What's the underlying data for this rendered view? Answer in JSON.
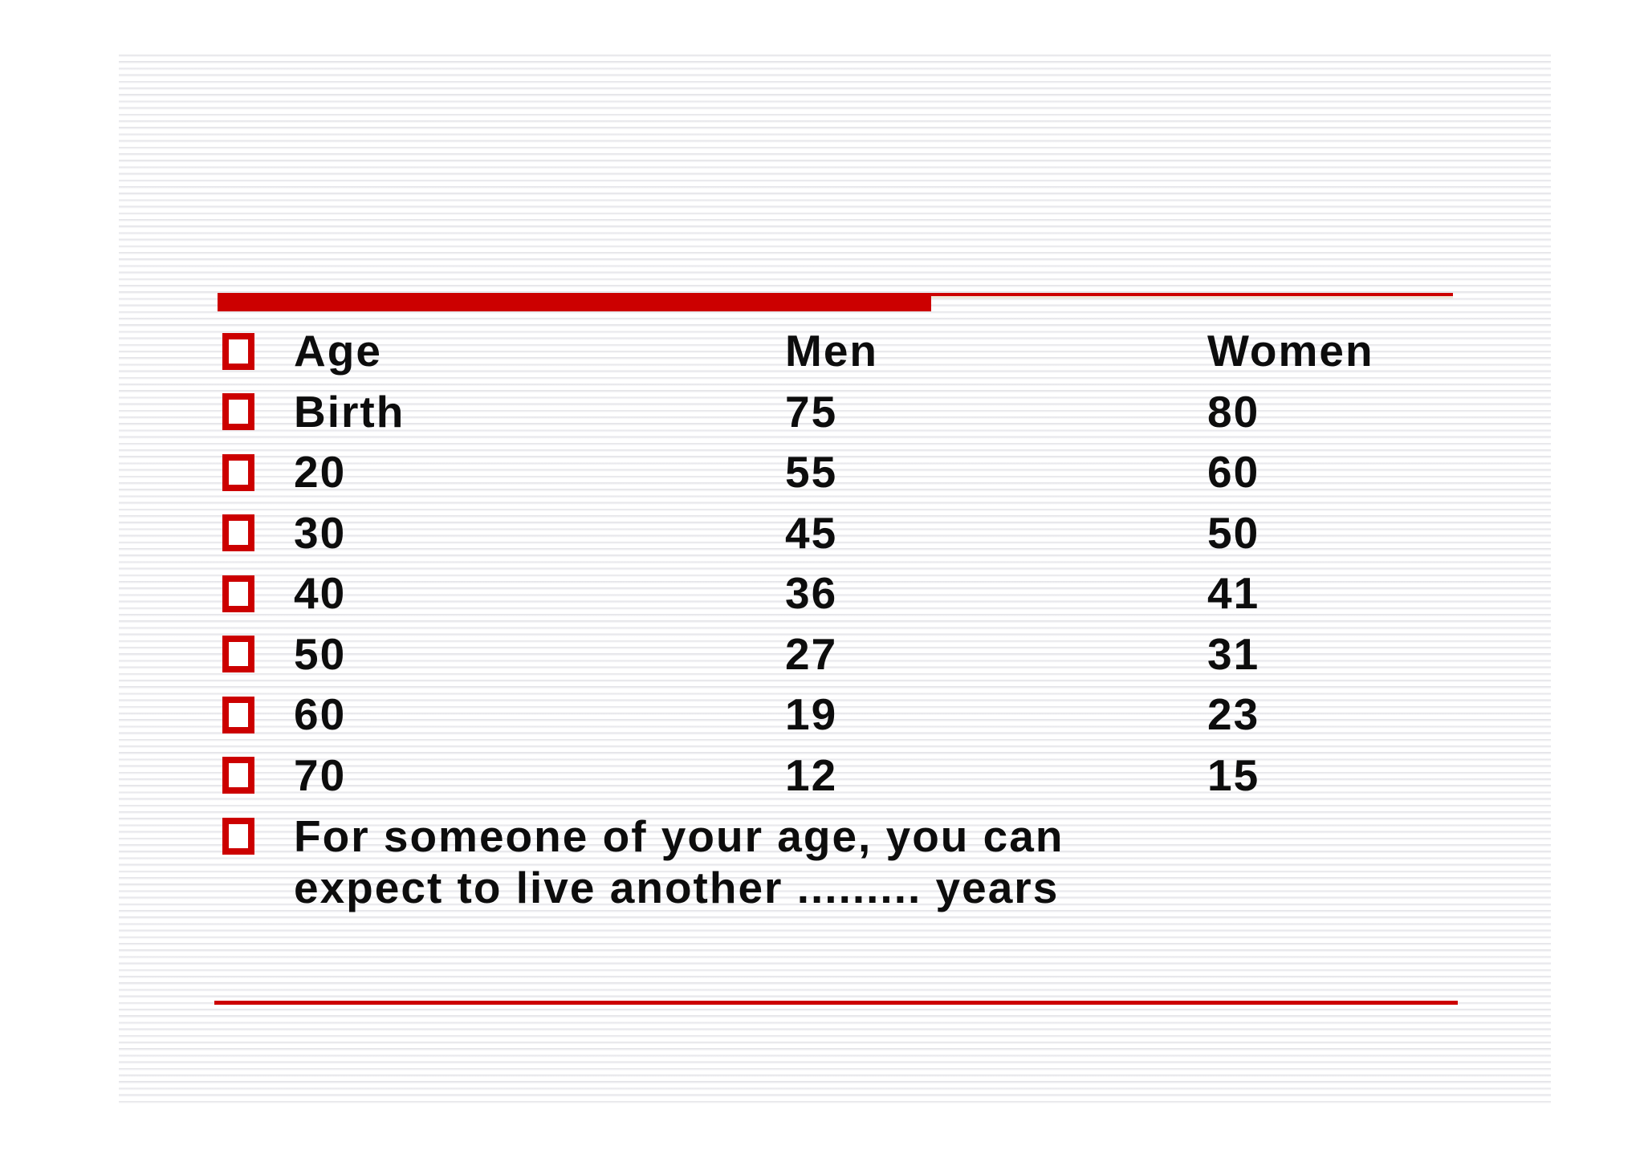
{
  "slide": {
    "accent_color": "#cc0000",
    "stripe_color": "#e2e2e6",
    "background_color": "#ffffff",
    "text_color": "#0d0d0d"
  },
  "table": {
    "header": {
      "age": "Age",
      "men": "Men",
      "women": "Women"
    },
    "rows": [
      {
        "age": "Birth",
        "men": "75",
        "women": "80"
      },
      {
        "age": "20",
        "men": "55",
        "women": "60"
      },
      {
        "age": "30",
        "men": "45",
        "women": "50"
      },
      {
        "age": "40",
        "men": "36",
        "women": "41"
      },
      {
        "age": "50",
        "men": "27",
        "women": "31"
      },
      {
        "age": "60",
        "men": "19",
        "women": "23"
      },
      {
        "age": "70",
        "men": "12",
        "women": "15"
      }
    ]
  },
  "note": {
    "text": "For someone of your age, you can expect to live another ......... years",
    "lines": [
      "For someone of your age, you can",
      "expect to live another ......... years"
    ]
  },
  "chart_data": {
    "type": "table",
    "title": "",
    "categories": [
      "Birth",
      "20",
      "30",
      "40",
      "50",
      "60",
      "70"
    ],
    "series": [
      {
        "name": "Men",
        "values": [
          75,
          55,
          45,
          36,
          27,
          19,
          12
        ]
      },
      {
        "name": "Women",
        "values": [
          80,
          60,
          50,
          41,
          31,
          23,
          15
        ]
      }
    ]
  }
}
